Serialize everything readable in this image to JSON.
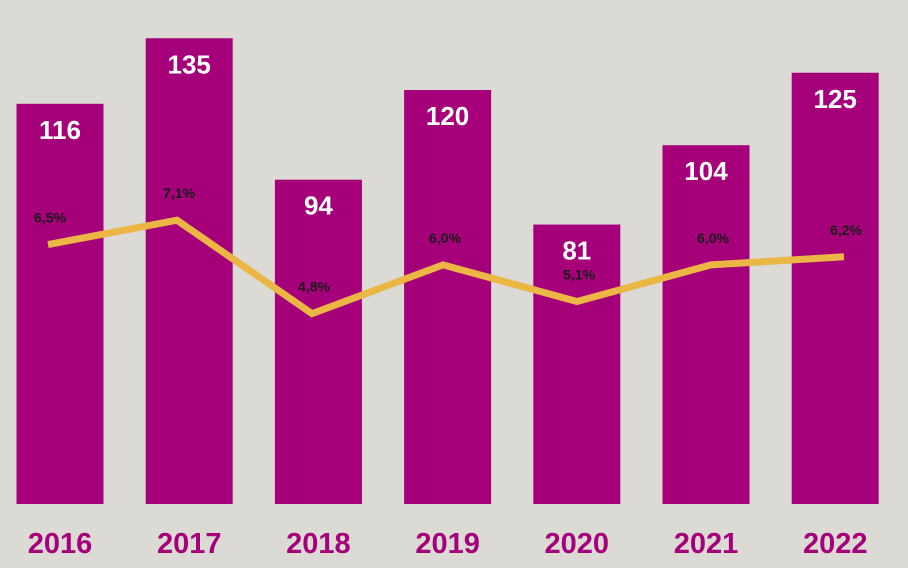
{
  "chart_data": {
    "type": "bar",
    "categories": [
      "2016",
      "2017",
      "2018",
      "2019",
      "2020",
      "2021",
      "2022"
    ],
    "series": [
      {
        "values": [
          116,
          135,
          94,
          120,
          81,
          104,
          125
        ]
      },
      {
        "type": "line",
        "values": [
          6.5,
          7.1,
          4.8,
          6.0,
          5.1,
          6.0,
          6.2
        ],
        "labels": [
          "6,5%",
          "7,1%",
          "4,8%",
          "6,0%",
          "5,1%",
          "6,0%",
          "6,2%"
        ]
      }
    ],
    "ylim": [
      0,
      140
    ],
    "ylim_secondary": [
      0,
      14
    ],
    "grid": false,
    "legend": "none",
    "colors": {
      "bar": "#a5007a",
      "line": "#ebb644",
      "background": "#dcdad5",
      "category_text": "#a5007a"
    }
  }
}
